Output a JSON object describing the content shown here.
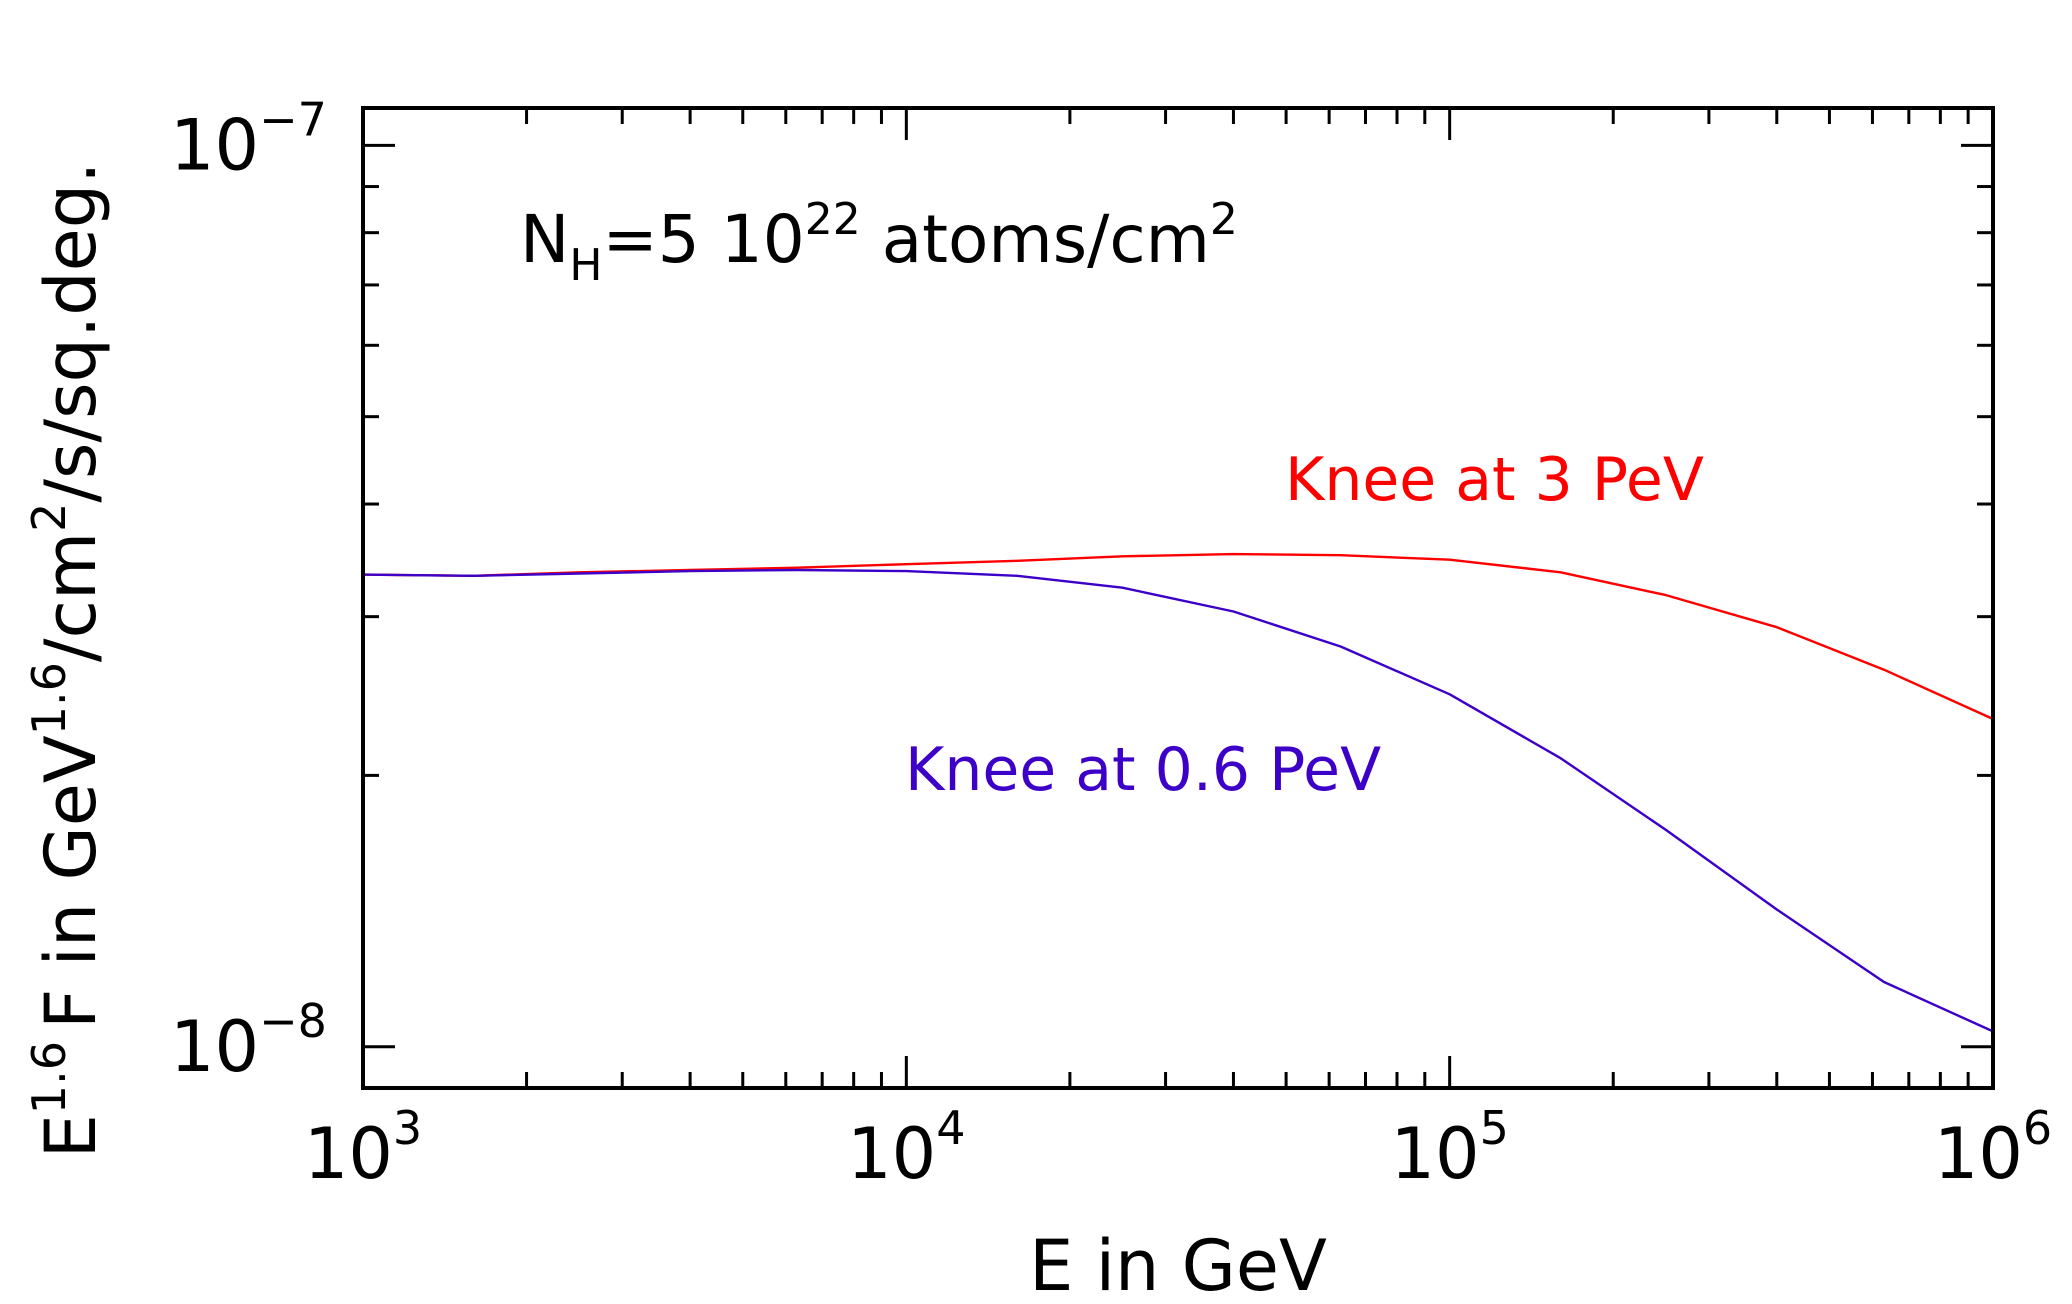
{
  "chart_data": {
    "type": "line",
    "title": "",
    "xlabel": "E in GeV",
    "ylabel": {
      "base": "E",
      "base_sup": "1.6",
      "mid": "F in GeV",
      "mid_sup": "1.6",
      "unit1": "/cm",
      "unit1_sup": "2",
      "rest": "/s/sq.deg."
    },
    "xscale": "log",
    "yscale": "log",
    "xlim": [
      1000,
      1000000
    ],
    "ylim": [
      9e-09,
      1.1e-07
    ],
    "grid": false,
    "x_ticks": [
      {
        "value": 1000,
        "base": "10",
        "exp": "3"
      },
      {
        "value": 10000,
        "base": "10",
        "exp": "4"
      },
      {
        "value": 100000,
        "base": "10",
        "exp": "5"
      },
      {
        "value": 1000000,
        "base": "10",
        "exp": "6"
      }
    ],
    "y_ticks": [
      {
        "value": 1e-08,
        "base": "10",
        "exp": "−8"
      },
      {
        "value": 1e-07,
        "base": "10",
        "exp": "−7"
      }
    ],
    "annotation": {
      "prefix": "N",
      "sub": "H",
      "middle": "=5 10",
      "sup1": "22",
      "suffix": " atoms/cm",
      "sup2": "2"
    },
    "series": [
      {
        "name": "Knee at 3 PeV",
        "color": "#ff0000",
        "x": [
          1000,
          1600,
          2500,
          4000,
          6300,
          10000,
          16000,
          25000,
          40000,
          63000,
          100000,
          160000,
          250000,
          400000,
          630000,
          1000000
        ],
        "y": [
          3.34e-08,
          3.33e-08,
          3.36e-08,
          3.38e-08,
          3.4e-08,
          3.43e-08,
          3.46e-08,
          3.5e-08,
          3.52e-08,
          3.51e-08,
          3.47e-08,
          3.36e-08,
          3.17e-08,
          2.92e-08,
          2.62e-08,
          2.31e-08
        ]
      },
      {
        "name": "Knee at 0.6 PeV",
        "color": "#3c00c8",
        "x": [
          1000,
          1600,
          2500,
          4000,
          6300,
          10000,
          16000,
          25000,
          40000,
          63000,
          100000,
          160000,
          250000,
          400000,
          630000,
          1000000
        ],
        "y": [
          3.34e-08,
          3.33e-08,
          3.35e-08,
          3.37e-08,
          3.38e-08,
          3.37e-08,
          3.33e-08,
          3.23e-08,
          3.04e-08,
          2.78e-08,
          2.46e-08,
          2.09e-08,
          1.74e-08,
          1.42e-08,
          1.18e-08,
          1.04e-08
        ]
      }
    ]
  }
}
